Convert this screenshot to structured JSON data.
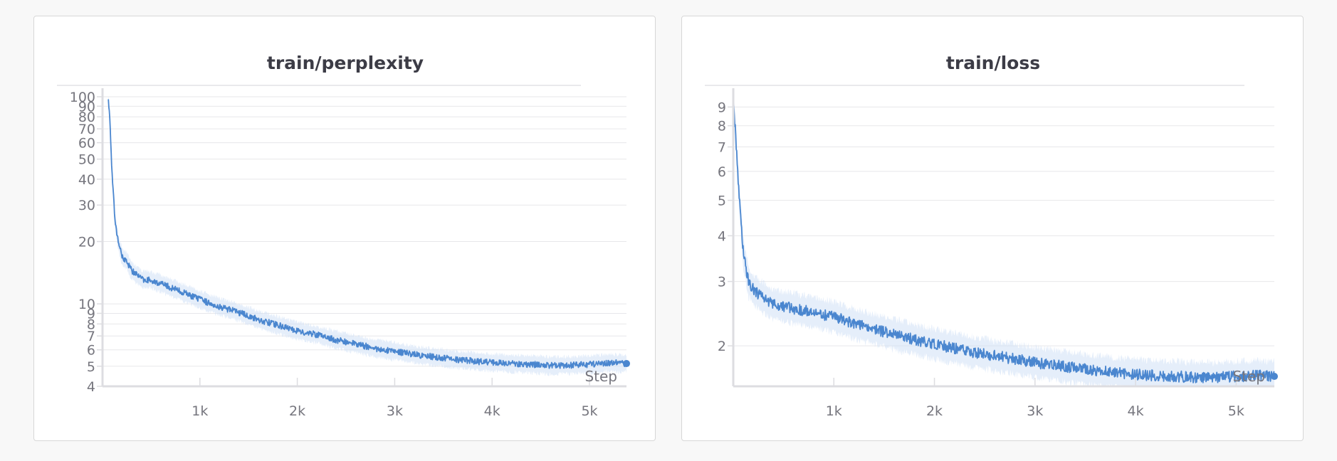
{
  "colors": {
    "line": "#4a86cf",
    "band": "#cfe0f5",
    "grid": "#e7e7ea",
    "axis": "#dddde1",
    "text": "#76767e",
    "title": "#3c3c46"
  },
  "chart_data": [
    {
      "type": "line",
      "title": "train/perplexity",
      "xlabel": "Step",
      "ylabel": "",
      "yscale": "log",
      "xlim": [
        0,
        5380
      ],
      "ylim": [
        4,
        100
      ],
      "x_ticks": [
        1000,
        2000,
        3000,
        4000,
        5000
      ],
      "x_tick_labels": [
        "1k",
        "2k",
        "3k",
        "4k",
        "5k"
      ],
      "y_ticks": [
        4,
        5,
        6,
        7,
        8,
        9,
        10,
        20,
        30,
        40,
        50,
        60,
        70,
        80,
        90,
        100
      ],
      "y_tick_labels": [
        "4",
        "5",
        "6",
        "7",
        "8",
        "9",
        "10",
        "20",
        "30",
        "40",
        "50",
        "60",
        "70",
        "80",
        "90",
        "100"
      ],
      "grid": true,
      "series": [
        {
          "x": [
            60,
            80,
            100,
            130,
            160,
            200,
            250,
            300,
            400,
            500,
            600,
            700,
            800,
            900,
            1000,
            1200,
            1400,
            1600,
            1800,
            2000,
            2200,
            2400,
            2600,
            2800,
            3000,
            3200,
            3400,
            3600,
            3800,
            4000,
            4200,
            4400,
            4600,
            4800,
            5000,
            5200,
            5380
          ],
          "y": [
            100,
            70,
            40,
            25,
            20,
            17,
            16,
            14.5,
            13.2,
            13,
            12.5,
            12,
            11.5,
            11,
            10.5,
            9.7,
            9.1,
            8.4,
            7.9,
            7.4,
            7.1,
            6.7,
            6.4,
            6.1,
            5.9,
            5.7,
            5.55,
            5.4,
            5.3,
            5.2,
            5.15,
            5.1,
            5.05,
            5.05,
            5.1,
            5.2,
            5.15
          ]
        }
      ]
    },
    {
      "type": "line",
      "title": "train/loss",
      "xlabel": "Step",
      "ylabel": "",
      "yscale": "log",
      "xlim": [
        0,
        5380
      ],
      "ylim": [
        1.55,
        9.6
      ],
      "x_ticks": [
        1000,
        2000,
        3000,
        4000,
        5000
      ],
      "x_tick_labels": [
        "1k",
        "2k",
        "3k",
        "4k",
        "5k"
      ],
      "y_ticks": [
        2,
        3,
        4,
        5,
        6,
        7,
        8,
        9
      ],
      "y_tick_labels": [
        "2",
        "3",
        "4",
        "5",
        "6",
        "7",
        "8",
        "9"
      ],
      "grid": true,
      "series": [
        {
          "x": [
            0,
            30,
            60,
            100,
            150,
            200,
            300,
            400,
            500,
            600,
            700,
            800,
            1000,
            1200,
            1400,
            1600,
            1800,
            2000,
            2200,
            2400,
            2600,
            2800,
            3000,
            3200,
            3400,
            3600,
            3800,
            4000,
            4200,
            4400,
            4600,
            4800,
            5000,
            5200,
            5380
          ],
          "y": [
            9.6,
            7,
            5,
            3.6,
            3.0,
            2.85,
            2.7,
            2.6,
            2.57,
            2.53,
            2.5,
            2.47,
            2.4,
            2.3,
            2.22,
            2.15,
            2.08,
            2.02,
            1.97,
            1.92,
            1.88,
            1.84,
            1.8,
            1.77,
            1.74,
            1.71,
            1.69,
            1.67,
            1.66,
            1.65,
            1.64,
            1.64,
            1.65,
            1.66,
            1.65
          ]
        }
      ]
    }
  ]
}
